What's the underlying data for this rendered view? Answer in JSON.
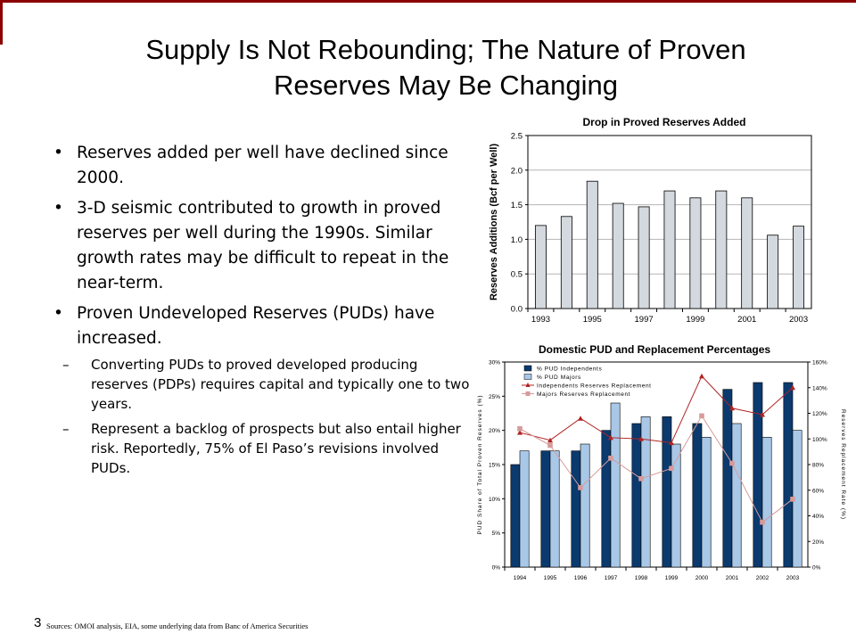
{
  "slide": {
    "title_line1": "Supply Is Not Rebounding; The Nature of Proven",
    "title_line2": "Reserves May Be Changing",
    "page_number": "3",
    "sources": "Sources: OMOI analysis, EIA, some underlying data from Banc of America Securities",
    "accent_color": "#8b0000"
  },
  "bullets": [
    {
      "text": "Reserves added per well have declined since 2000."
    },
    {
      "text": "3-D seismic contributed to growth in proved reserves per well during the 1990s. Similar growth rates may be difficult to repeat in the near-term."
    },
    {
      "text": "Proven Undeveloped Reserves (PUDs) have increased.",
      "sub": [
        {
          "text": "Converting PUDs to proved developed producing reserves (PDPs) requires capital and typically one to two years."
        },
        {
          "text": "Represent a backlog of prospects but also entail higher risk.  Reportedly, 75% of El Paso’s revisions involved PUDs."
        }
      ]
    }
  ],
  "chart_data": [
    {
      "type": "bar",
      "title": "Drop in Proved Reserves Added",
      "ylabel": "Reserves Additions (Bcf per Well)",
      "categories": [
        "1993",
        "1994",
        "1995",
        "1996",
        "1997",
        "1998",
        "1999",
        "2000",
        "2001",
        "2002",
        "2003"
      ],
      "x_tick_labels": [
        "1993",
        "1995",
        "1997",
        "1999",
        "2001",
        "2003"
      ],
      "values": [
        1.2,
        1.33,
        1.84,
        1.52,
        1.47,
        1.7,
        1.6,
        1.7,
        1.6,
        1.06,
        1.19
      ],
      "ylim": [
        0,
        2.5
      ],
      "y_ticks": [
        "0.0",
        "0.5",
        "1.0",
        "1.5",
        "2.0",
        "2.5"
      ],
      "bar_color": "#d4d9df",
      "grid": true
    },
    {
      "type": "bar",
      "title": "Domestic PUD and Replacement Percentages",
      "ylabel": "PUD Share of Total Proven Reserves (%)",
      "y2label": "Reserves Replacement Rate (%)",
      "categories": [
        "1994",
        "1995",
        "1996",
        "1997",
        "1998",
        "1999",
        "2000",
        "2001",
        "2002",
        "2003"
      ],
      "y_ticks": [
        "0%",
        "5%",
        "10%",
        "15%",
        "20%",
        "25%",
        "30%"
      ],
      "y2_ticks": [
        "0%",
        "20%",
        "40%",
        "60%",
        "80%",
        "100%",
        "120%",
        "140%",
        "160%"
      ],
      "ylim": [
        0,
        30
      ],
      "y2lim": [
        0,
        160
      ],
      "legend_position": "top-left",
      "series": [
        {
          "name": "% PUD Independents",
          "kind": "bar",
          "axis": "left",
          "color": "#0b3a6e",
          "values": [
            15,
            17,
            17,
            20,
            21,
            22,
            21,
            26,
            27,
            27
          ]
        },
        {
          "name": "% PUD Majors",
          "kind": "bar",
          "axis": "left",
          "color": "#a9c8e8",
          "values": [
            17,
            17,
            18,
            24,
            22,
            18,
            19,
            21,
            19,
            20
          ]
        },
        {
          "name": "Independents Reserves Replacement",
          "kind": "line",
          "axis": "right",
          "color": "#b22222",
          "values": [
            105,
            99,
            116,
            101,
            100,
            97,
            149,
            124,
            119,
            140
          ]
        },
        {
          "name": "Majors Reserves Replacement",
          "kind": "line",
          "axis": "right",
          "color": "#d79a9a",
          "values": [
            108,
            95,
            62,
            85,
            69,
            77,
            118,
            81,
            35,
            53
          ]
        }
      ]
    }
  ]
}
